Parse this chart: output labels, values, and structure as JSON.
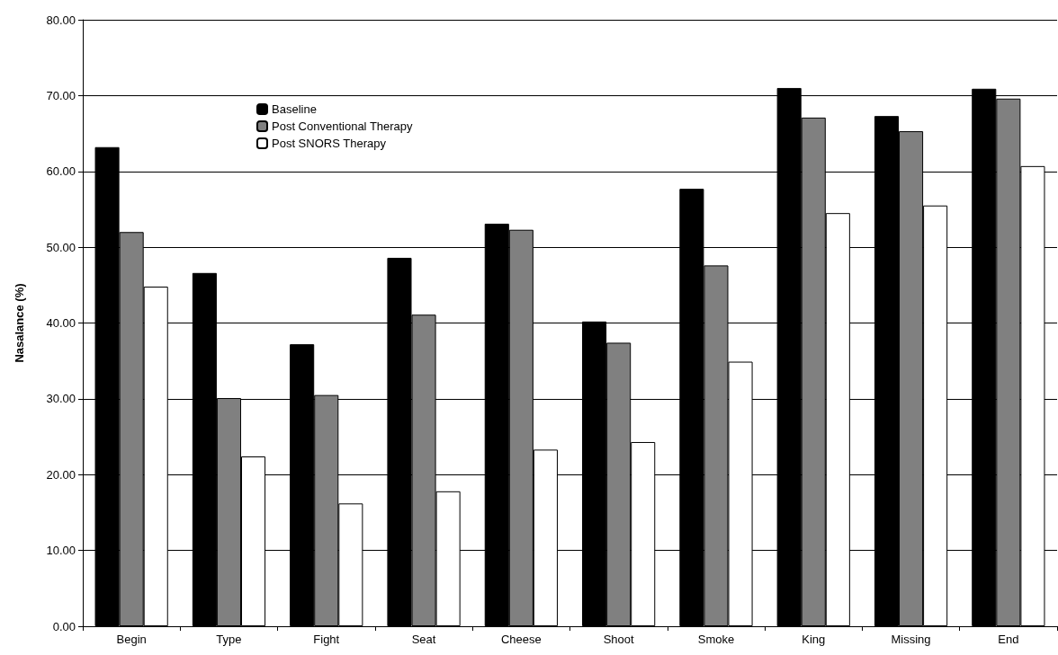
{
  "chart_data": {
    "type": "bar",
    "ylabel": "Nasalance (%)",
    "categories": [
      "Begin",
      "Type",
      "Fight",
      "Seat",
      "Cheese",
      "Shoot",
      "Smoke",
      "King",
      "Missing",
      "End"
    ],
    "series": [
      {
        "name": "Baseline",
        "color": "#000000",
        "values": [
          63.2,
          46.6,
          37.2,
          48.6,
          53.1,
          40.2,
          57.7,
          71.0,
          67.3,
          70.9
        ]
      },
      {
        "name": "Post Conventional Therapy",
        "color": "#808080",
        "values": [
          52.0,
          30.1,
          30.5,
          41.1,
          52.3,
          37.4,
          47.6,
          67.1,
          65.3,
          69.6
        ]
      },
      {
        "name": "Post SNORS Therapy",
        "color": "#ffffff",
        "values": [
          44.8,
          22.4,
          16.2,
          17.8,
          23.3,
          24.3,
          34.9,
          54.5,
          55.5,
          60.7
        ]
      }
    ],
    "ylim": [
      0,
      80
    ],
    "yticks": [
      {
        "value": 0,
        "label": "0.00"
      },
      {
        "value": 10,
        "label": "10.00"
      },
      {
        "value": 20,
        "label": "20.00"
      },
      {
        "value": 30,
        "label": "30.00"
      },
      {
        "value": 40,
        "label": "40.00"
      },
      {
        "value": 50,
        "label": "50.00"
      },
      {
        "value": 60,
        "label": "60.00"
      },
      {
        "value": 70,
        "label": "70.00"
      },
      {
        "value": 80,
        "label": "80.00"
      }
    ],
    "grid": "y",
    "legend": "top left"
  }
}
